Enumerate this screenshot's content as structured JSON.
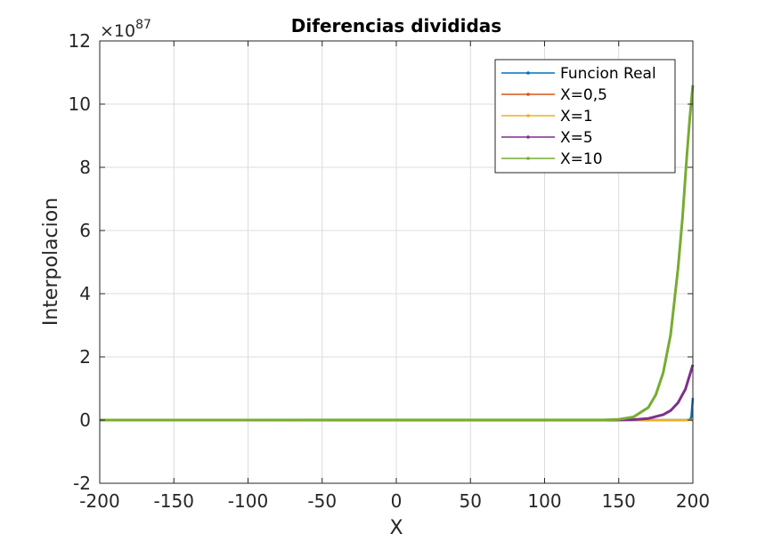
{
  "chart_data": {
    "type": "line",
    "title": "Diferencias divididas",
    "xlabel": "X",
    "ylabel": "Interpolacion",
    "exponent_label": {
      "prefix": "×10",
      "power": "87"
    },
    "xlim": [
      -200,
      200
    ],
    "ylim": [
      -2,
      12
    ],
    "xticks": [
      -200,
      -150,
      -100,
      -50,
      0,
      50,
      100,
      150,
      200
    ],
    "xtick_labels": [
      "-200",
      "-150",
      "-100",
      "-50",
      "0",
      "50",
      "100",
      "150",
      "200"
    ],
    "yticks": [
      -2,
      0,
      2,
      4,
      6,
      8,
      10,
      12
    ],
    "ytick_labels": [
      "-2",
      "0",
      "2",
      "4",
      "6",
      "8",
      "10",
      "12"
    ],
    "grid": true,
    "legend_position": "top-right",
    "series": [
      {
        "name": "Funcion Real",
        "color": "#0072bd",
        "marker": "+",
        "x": [
          -200,
          150,
          180,
          190,
          195,
          198,
          199,
          200
        ],
        "y": [
          0,
          0,
          0,
          0,
          0.0002,
          0.01,
          0.1,
          0.7
        ]
      },
      {
        "name": "X=0,5",
        "color": "#d95319",
        "marker": "*",
        "x": [
          -200,
          150,
          190,
          200
        ],
        "y": [
          0,
          0,
          0,
          0
        ]
      },
      {
        "name": "X=1",
        "color": "#edb120",
        "marker": "o",
        "x": [
          -200,
          150,
          190,
          200
        ],
        "y": [
          0,
          0,
          0,
          0
        ]
      },
      {
        "name": "X=5",
        "color": "#7e2f8e",
        "marker": "x",
        "x": [
          -200,
          140,
          150,
          160,
          170,
          180,
          185,
          190,
          195,
          200
        ],
        "y": [
          0,
          0,
          0.003,
          0.013,
          0.05,
          0.17,
          0.3,
          0.55,
          0.98,
          1.75
        ]
      },
      {
        "name": "X=10",
        "color": "#77ac30",
        "marker": "s",
        "x": [
          -200,
          140,
          150,
          160,
          170,
          175,
          180,
          185,
          190,
          193,
          196,
          198,
          200
        ],
        "y": [
          0,
          0.004,
          0.02,
          0.1,
          0.4,
          0.8,
          1.5,
          2.7,
          4.8,
          6.4,
          8.4,
          9.6,
          10.6
        ]
      }
    ]
  }
}
